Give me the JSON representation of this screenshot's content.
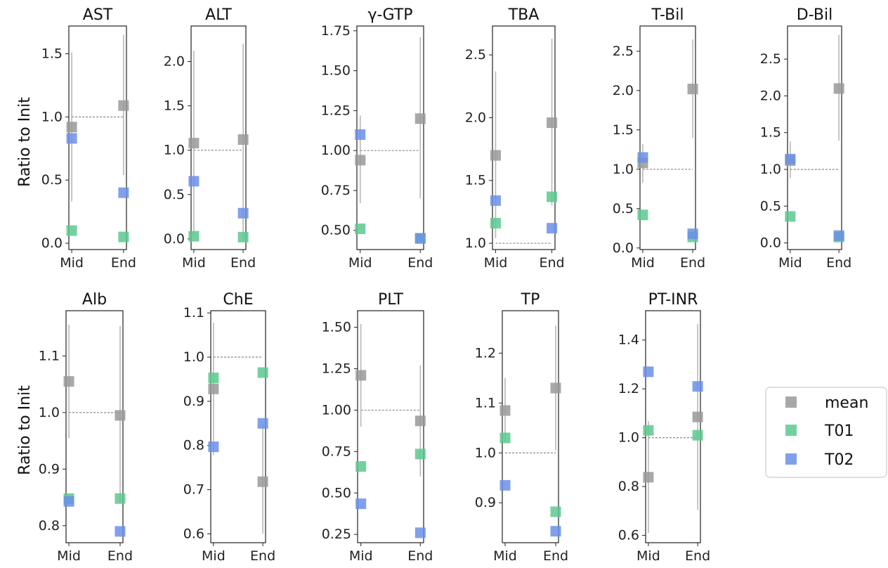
{
  "figure": {
    "ylabel_top": "Ratio to Init",
    "ylabel_bottom": "Ratio to Init"
  },
  "legend": {
    "entries": [
      {
        "name": "mean",
        "color": "#999999"
      },
      {
        "name": "T01",
        "color": "#5cc98e"
      },
      {
        "name": "T02",
        "color": "#6b8fe8"
      }
    ]
  },
  "colors": {
    "mean": "#999999",
    "T01": "#5cc98e",
    "T02": "#6b8fe8",
    "errorbar": "#b8b8b8",
    "reference_line": "#888888"
  },
  "chart_data": [
    {
      "type": "scatter",
      "title": "AST",
      "categories": [
        "Mid",
        "End"
      ],
      "ylim": [
        -0.05,
        1.72
      ],
      "yticks": [
        0.0,
        0.5,
        1.0,
        1.5
      ],
      "ytick_labels": [
        "0.0",
        "0.5",
        "1.0",
        "1.5"
      ],
      "series": [
        {
          "name": "mean",
          "values": [
            0.92,
            1.09
          ],
          "error_low": [
            0.33,
            0.54
          ],
          "error_high": [
            1.51,
            1.65
          ]
        },
        {
          "name": "T01",
          "values": [
            0.1,
            0.05
          ]
        },
        {
          "name": "T02",
          "values": [
            0.83,
            0.4
          ]
        }
      ],
      "reference": 1.0
    },
    {
      "type": "scatter",
      "title": "ALT",
      "categories": [
        "Mid",
        "End"
      ],
      "ylim": [
        -0.12,
        2.4
      ],
      "yticks": [
        0.0,
        0.5,
        1.0,
        1.5,
        2.0
      ],
      "ytick_labels": [
        "0.0",
        "0.5",
        "1.0",
        "1.5",
        "2.0"
      ],
      "series": [
        {
          "name": "mean",
          "values": [
            1.08,
            1.12
          ],
          "error_low": [
            0.03,
            0.0
          ],
          "error_high": [
            2.12,
            2.2
          ]
        },
        {
          "name": "T01",
          "values": [
            0.03,
            0.02
          ]
        },
        {
          "name": "T02",
          "values": [
            0.65,
            0.29
          ]
        }
      ],
      "reference": 1.0
    },
    {
      "type": "scatter",
      "title": "γ-GTP",
      "categories": [
        "Mid",
        "End"
      ],
      "ylim": [
        0.38,
        1.78
      ],
      "yticks": [
        0.5,
        0.75,
        1.0,
        1.25,
        1.5,
        1.75
      ],
      "ytick_labels": [
        "0.50",
        "0.75",
        "1.00",
        "1.25",
        "1.50",
        "1.75"
      ],
      "series": [
        {
          "name": "mean",
          "values": [
            0.94,
            1.2
          ],
          "error_low": [
            0.67,
            0.7
          ],
          "error_high": [
            1.22,
            1.71
          ]
        },
        {
          "name": "T01",
          "values": [
            0.51,
            0.45
          ]
        },
        {
          "name": "T02",
          "values": [
            1.1,
            0.45
          ]
        }
      ],
      "reference": 1.0
    },
    {
      "type": "scatter",
      "title": "TBA",
      "categories": [
        "Mid",
        "End"
      ],
      "ylim": [
        0.95,
        2.73
      ],
      "yticks": [
        1.0,
        1.5,
        2.0,
        2.5
      ],
      "ytick_labels": [
        "1.0",
        "1.5",
        "2.0",
        "2.5"
      ],
      "series": [
        {
          "name": "mean",
          "values": [
            1.7,
            1.96
          ],
          "error_low": [
            1.04,
            1.3
          ],
          "error_high": [
            2.37,
            2.63
          ]
        },
        {
          "name": "T01",
          "values": [
            1.16,
            1.37
          ]
        },
        {
          "name": "T02",
          "values": [
            1.34,
            1.12
          ]
        }
      ],
      "reference": 1.0
    },
    {
      "type": "scatter",
      "title": "T-Bil",
      "categories": [
        "Mid",
        "End"
      ],
      "ylim": [
        -0.02,
        2.82
      ],
      "yticks": [
        0.0,
        0.5,
        1.0,
        1.5,
        2.0,
        2.5
      ],
      "ytick_labels": [
        "0.0",
        "0.5",
        "1.0",
        "1.5",
        "2.0",
        "2.5"
      ],
      "series": [
        {
          "name": "mean",
          "values": [
            1.08,
            2.02
          ],
          "error_low": [
            0.83,
            1.4
          ],
          "error_high": [
            1.32,
            2.65
          ]
        },
        {
          "name": "T01",
          "values": [
            0.42,
            0.14
          ]
        },
        {
          "name": "T02",
          "values": [
            1.15,
            0.18
          ]
        }
      ],
      "reference": 1.0
    },
    {
      "type": "scatter",
      "title": "D-Bil",
      "categories": [
        "Mid",
        "End"
      ],
      "ylim": [
        -0.09,
        2.95
      ],
      "yticks": [
        0.0,
        0.5,
        1.0,
        1.5,
        2.0,
        2.5
      ],
      "ytick_labels": [
        "0.0",
        "0.5",
        "1.0",
        "1.5",
        "2.0",
        "2.5"
      ],
      "series": [
        {
          "name": "mean",
          "values": [
            1.12,
            2.1
          ],
          "error_low": [
            0.88,
            1.39
          ],
          "error_high": [
            1.38,
            2.83
          ]
        },
        {
          "name": "T01",
          "values": [
            0.36,
            0.08
          ]
        },
        {
          "name": "T02",
          "values": [
            1.14,
            0.1
          ]
        }
      ],
      "reference": 1.0
    },
    {
      "type": "scatter",
      "title": "Alb",
      "categories": [
        "Mid",
        "End"
      ],
      "ylim": [
        0.77,
        1.18
      ],
      "yticks": [
        0.8,
        0.9,
        1.0,
        1.1
      ],
      "ytick_labels": [
        "0.8",
        "0.9",
        "1.0",
        "1.1"
      ],
      "series": [
        {
          "name": "mean",
          "values": [
            1.055,
            0.995
          ],
          "error_low": [
            0.955,
            0.84
          ],
          "error_high": [
            1.155,
            1.153
          ]
        },
        {
          "name": "T01",
          "values": [
            0.848,
            0.848
          ]
        },
        {
          "name": "T02",
          "values": [
            0.843,
            0.79
          ]
        }
      ],
      "reference": 1.0
    },
    {
      "type": "scatter",
      "title": "ChE",
      "categories": [
        "Mid",
        "End"
      ],
      "ylim": [
        0.58,
        1.105
      ],
      "yticks": [
        0.6,
        0.7,
        0.8,
        0.9,
        1.0,
        1.1
      ],
      "ytick_labels": [
        "0.6",
        "0.7",
        "0.8",
        "0.9",
        "1.0",
        "1.1"
      ],
      "series": [
        {
          "name": "mean",
          "values": [
            0.928,
            0.718
          ],
          "error_low": [
            0.778,
            0.6
          ],
          "error_high": [
            1.078,
            0.848
          ]
        },
        {
          "name": "T01",
          "values": [
            0.953,
            0.965
          ]
        },
        {
          "name": "T02",
          "values": [
            0.797,
            0.85
          ]
        }
      ],
      "reference": 1.0
    },
    {
      "type": "scatter",
      "title": "PLT",
      "categories": [
        "Mid",
        "End"
      ],
      "ylim": [
        0.2,
        1.6
      ],
      "yticks": [
        0.25,
        0.5,
        0.75,
        1.0,
        1.25,
        1.5
      ],
      "ytick_labels": [
        "0.25",
        "0.50",
        "0.75",
        "1.00",
        "1.25",
        "1.50"
      ],
      "series": [
        {
          "name": "mean",
          "values": [
            1.21,
            0.935
          ],
          "error_low": [
            0.9,
            0.6
          ],
          "error_high": [
            1.52,
            1.27
          ]
        },
        {
          "name": "T01",
          "values": [
            0.66,
            0.735
          ]
        },
        {
          "name": "T02",
          "values": [
            0.435,
            0.26
          ]
        }
      ],
      "reference": 1.0
    },
    {
      "type": "scatter",
      "title": "TP",
      "categories": [
        "Mid",
        "End"
      ],
      "ylim": [
        0.82,
        1.285
      ],
      "yticks": [
        0.9,
        1.0,
        1.1,
        1.2
      ],
      "ytick_labels": [
        "0.9",
        "1.0",
        "1.1",
        "1.2"
      ],
      "series": [
        {
          "name": "mean",
          "values": [
            1.085,
            1.13
          ],
          "error_low": [
            1.02,
            1.005
          ],
          "error_high": [
            1.15,
            1.255
          ]
        },
        {
          "name": "T01",
          "values": [
            1.03,
            0.882
          ]
        },
        {
          "name": "T02",
          "values": [
            0.935,
            0.843
          ]
        }
      ],
      "reference": 1.0
    },
    {
      "type": "scatter",
      "title": "PT-INR",
      "categories": [
        "Mid",
        "End"
      ],
      "ylim": [
        0.57,
        1.52
      ],
      "yticks": [
        0.6,
        0.8,
        1.0,
        1.2,
        1.4
      ],
      "ytick_labels": [
        "0.6",
        "0.8",
        "1.0",
        "1.2",
        "1.4"
      ],
      "series": [
        {
          "name": "mean",
          "values": [
            0.838,
            1.085
          ],
          "error_low": [
            0.61,
            0.705
          ],
          "error_high": [
            1.068,
            1.465
          ]
        },
        {
          "name": "T01",
          "values": [
            1.03,
            1.01
          ]
        },
        {
          "name": "T02",
          "values": [
            1.27,
            1.21
          ]
        }
      ],
      "reference": 1.0
    }
  ]
}
